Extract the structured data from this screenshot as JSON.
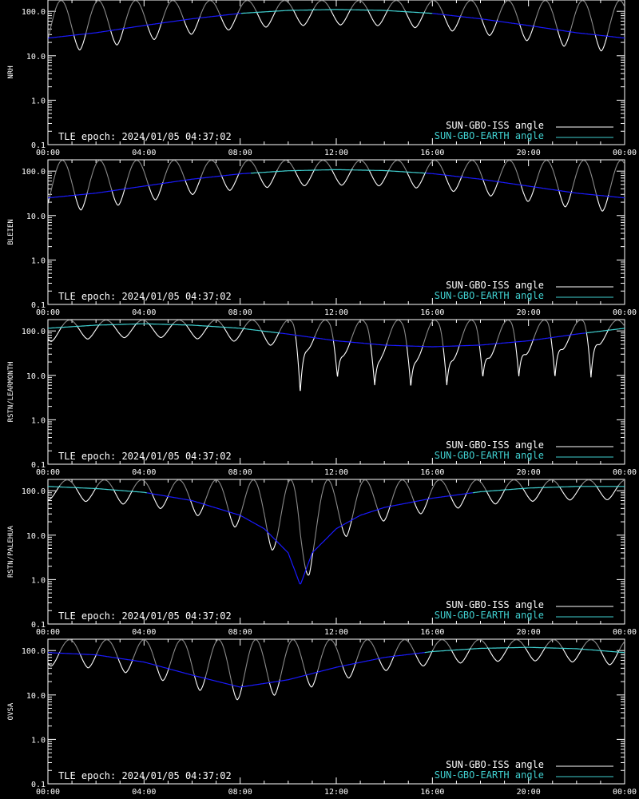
{
  "colors": {
    "background": "#000000",
    "axes": "#ffffff",
    "iss_angle_sunlit": "#ffffff",
    "iss_angle_dim": "#8a8a8a",
    "earth_angle_above": "#40d0d0",
    "earth_angle_below": "#1a1aff"
  },
  "legend": {
    "iss_label": "SUN-GBO-ISS angle",
    "earth_label": "SUN-GBO-EARTH angle"
  },
  "epoch_text": "TLE epoch: 2024/01/05 04:37:02",
  "chart_data": [
    {
      "type": "line",
      "ylabel": "NRH",
      "yscale": "log",
      "ylim": [
        0.1,
        180
      ],
      "xlim_hours": [
        0,
        24
      ],
      "x_tick_labels": [
        "00:00",
        "04:00",
        "08:00",
        "12:00",
        "16:00",
        "20:00",
        "00:00"
      ],
      "y_tick_labels": [
        "0.1",
        "1.0",
        "10.0",
        "100.0"
      ],
      "earth_angle": {
        "hours": [
          0,
          2,
          4,
          6,
          8,
          10,
          12,
          14,
          16,
          18,
          20,
          22,
          24
        ],
        "values": [
          25,
          33,
          48,
          68,
          90,
          105,
          110,
          105,
          90,
          68,
          48,
          33,
          25
        ]
      },
      "iss_angle": {
        "period_hours": 1.55,
        "phase_hours": 0.55,
        "min_depth": 0.45,
        "max_value": 175
      }
    },
    {
      "type": "line",
      "ylabel": "BLEIEN",
      "yscale": "log",
      "ylim": [
        0.1,
        180
      ],
      "xlim_hours": [
        0,
        24
      ],
      "x_tick_labels": [
        "00:00",
        "04:00",
        "08:00",
        "12:00",
        "16:00",
        "20:00",
        "00:00"
      ],
      "y_tick_labels": [
        "0.1",
        "1.0",
        "10.0",
        "100.0"
      ],
      "earth_angle": {
        "hours": [
          0,
          2,
          4,
          6,
          8,
          10,
          12,
          14,
          16,
          18,
          20,
          22,
          24
        ],
        "values": [
          25,
          32,
          46,
          66,
          87,
          102,
          108,
          103,
          88,
          66,
          46,
          32,
          25
        ]
      },
      "iss_angle": {
        "period_hours": 1.55,
        "phase_hours": 0.6,
        "min_depth": 0.45,
        "max_value": 175
      }
    },
    {
      "type": "line",
      "ylabel": "RSTN/LEARMONTH",
      "yscale": "log",
      "ylim": [
        0.1,
        180
      ],
      "xlim_hours": [
        0,
        24
      ],
      "x_tick_labels": [
        "00:00",
        "04:00",
        "08:00",
        "12:00",
        "16:00",
        "20:00",
        "00:00"
      ],
      "y_tick_labels": [
        "0.1",
        "1.0",
        "10.0",
        "100.0"
      ],
      "earth_angle": {
        "hours": [
          0,
          2,
          4,
          6,
          8,
          10,
          12,
          14,
          16,
          18,
          20,
          22,
          24
        ],
        "values": [
          115,
          135,
          145,
          135,
          115,
          85,
          60,
          48,
          44,
          48,
          60,
          85,
          115
        ]
      },
      "iss_angle": {
        "period_hours": 1.52,
        "phase_hours": 0.9,
        "min_depth": 0.5,
        "max_value": 175,
        "deep_minima": [
          {
            "h": 10.5,
            "v": 4
          },
          {
            "h": 12.05,
            "v": 9
          },
          {
            "h": 13.6,
            "v": 6
          },
          {
            "h": 15.1,
            "v": 5.5
          },
          {
            "h": 16.6,
            "v": 6
          },
          {
            "h": 18.1,
            "v": 9
          },
          {
            "h": 19.6,
            "v": 9.5
          },
          {
            "h": 21.1,
            "v": 9
          },
          {
            "h": 22.6,
            "v": 9
          }
        ]
      }
    },
    {
      "type": "line",
      "ylabel": "RSTN/PALEHUA",
      "yscale": "log",
      "ylim": [
        0.1,
        180
      ],
      "xlim_hours": [
        0,
        24
      ],
      "x_tick_labels": [
        "00:00",
        "04:00",
        "08:00",
        "12:00",
        "16:00",
        "20:00",
        "00:00"
      ],
      "y_tick_labels": [
        "0.1",
        "1.0",
        "10.0",
        "100.0"
      ],
      "earth_angle": {
        "hours": [
          0,
          2,
          4,
          6,
          8,
          9,
          10,
          10.5,
          11,
          12,
          13,
          14,
          16,
          18,
          20,
          22,
          24
        ],
        "values": [
          125,
          112,
          92,
          60,
          28,
          14,
          4,
          0.75,
          4,
          14,
          28,
          42,
          68,
          95,
          115,
          125,
          125
        ]
      },
      "iss_angle": {
        "period_hours": 1.55,
        "phase_hours": 0.8,
        "min_depth": 0.5,
        "max_value": 175
      }
    },
    {
      "type": "line",
      "ylabel": "OVSA",
      "yscale": "log",
      "ylim": [
        0.1,
        180
      ],
      "xlim_hours": [
        0,
        24
      ],
      "x_tick_labels": [
        "00:00",
        "04:00",
        "08:00",
        "12:00",
        "16:00",
        "20:00",
        "00:00"
      ],
      "y_tick_labels": [
        "0.1",
        "1.0",
        "10.0",
        "100.0"
      ],
      "earth_angle": {
        "hours": [
          0,
          2,
          4,
          6,
          8,
          10,
          12,
          14,
          16,
          18,
          20,
          22,
          24
        ],
        "values": [
          90,
          80,
          55,
          28,
          15,
          22,
          42,
          70,
          95,
          112,
          118,
          110,
          90
        ]
      },
      "iss_angle": {
        "period_hours": 1.55,
        "phase_hours": 0.9,
        "min_depth": 0.5,
        "max_value": 175
      }
    }
  ]
}
